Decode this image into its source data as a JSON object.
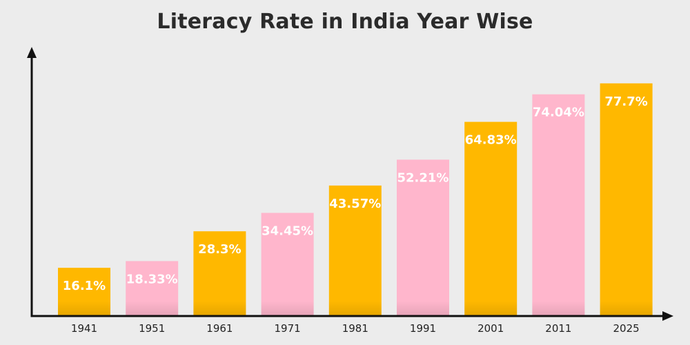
{
  "chart_data": {
    "type": "bar",
    "title": "Literacy Rate in India Year Wise",
    "xlabel": "",
    "ylabel": "",
    "categories": [
      "1941",
      "1951",
      "1961",
      "1971",
      "1981",
      "1991",
      "2001",
      "2011",
      "2025"
    ],
    "values": [
      16.1,
      18.33,
      28.3,
      34.45,
      43.57,
      52.21,
      64.83,
      74.04,
      77.7
    ],
    "data_labels": [
      "16.1%",
      "18.33%",
      "28.3%",
      "34.45%",
      "43.57%",
      "52.21%",
      "64.83%",
      "74.04%",
      "77.7%"
    ],
    "ylim": [
      0,
      100
    ],
    "grid": false,
    "legend": "none",
    "bar_colors": [
      "#ffb800",
      "#ffb6cc",
      "#ffb800",
      "#ffb6cc",
      "#ffb800",
      "#ffb6cc",
      "#ffb800",
      "#ffb6cc",
      "#ffb800"
    ],
    "axis_color": "#111111"
  }
}
